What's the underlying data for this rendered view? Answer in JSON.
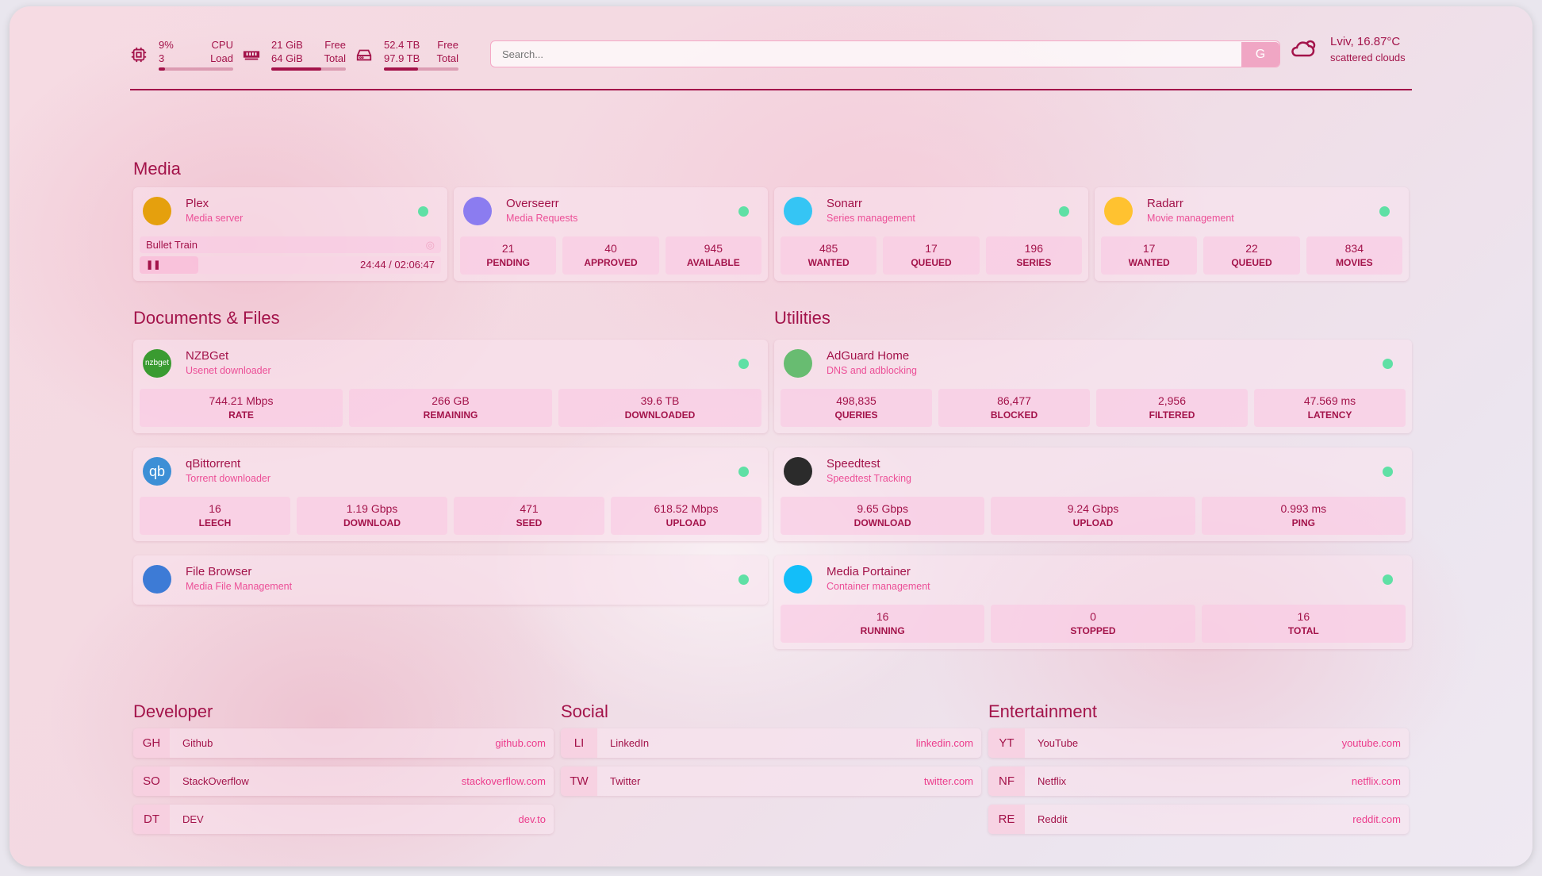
{
  "header": {
    "cpu": {
      "value": "9%",
      "sub": "3",
      "label1": "CPU",
      "label2": "Load",
      "percent": 9,
      "icon": "cpu-icon"
    },
    "memory": {
      "value": "21 GiB",
      "sub": "64 GiB",
      "label1": "Free",
      "label2": "Total",
      "percent": 67,
      "icon": "memory-icon"
    },
    "disk": {
      "value": "52.4 TB",
      "sub": "97.9 TB",
      "label1": "Free",
      "label2": "Total",
      "percent": 46,
      "icon": "disk-icon"
    },
    "search": {
      "placeholder": "Search...",
      "button": "G"
    },
    "weather": {
      "location": "Lviv, 16.87°C",
      "condition": "scattered clouds",
      "icon": "cloud-icon"
    }
  },
  "media": {
    "title": "Media",
    "cards": [
      {
        "name": "Plex",
        "desc": "Media server",
        "color": "#e5a00d",
        "now_playing": "Bullet Train",
        "time": "24:44 / 02:06:47",
        "progress": 19.5
      },
      {
        "name": "Overseerr",
        "desc": "Media Requests",
        "color": "#8b7cf0",
        "stats": [
          {
            "v": "21",
            "l": "PENDING"
          },
          {
            "v": "40",
            "l": "APPROVED"
          },
          {
            "v": "945",
            "l": "AVAILABLE"
          }
        ]
      },
      {
        "name": "Sonarr",
        "desc": "Series management",
        "color": "#35c5f4",
        "stats": [
          {
            "v": "485",
            "l": "WANTED"
          },
          {
            "v": "17",
            "l": "QUEUED"
          },
          {
            "v": "196",
            "l": "SERIES"
          }
        ]
      },
      {
        "name": "Radarr",
        "desc": "Movie management",
        "color": "#ffc230",
        "stats": [
          {
            "v": "17",
            "l": "WANTED"
          },
          {
            "v": "22",
            "l": "QUEUED"
          },
          {
            "v": "834",
            "l": "MOVIES"
          }
        ]
      }
    ]
  },
  "documents": {
    "title": "Documents & Files",
    "cards": [
      {
        "name": "NZBGet",
        "desc": "Usenet downloader",
        "color": "#3a9b31",
        "badge": "nzbget",
        "stats": [
          {
            "v": "744.21 Mbps",
            "l": "RATE"
          },
          {
            "v": "266 GB",
            "l": "REMAINING"
          },
          {
            "v": "39.6 TB",
            "l": "DOWNLOADED"
          }
        ]
      },
      {
        "name": "qBittorrent",
        "desc": "Torrent downloader",
        "color": "#3d8fd6",
        "badge": "qb",
        "stats": [
          {
            "v": "16",
            "l": "LEECH"
          },
          {
            "v": "1.19 Gbps",
            "l": "DOWNLOAD"
          },
          {
            "v": "471",
            "l": "SEED"
          },
          {
            "v": "618.52 Mbps",
            "l": "UPLOAD"
          }
        ]
      },
      {
        "name": "File Browser",
        "desc": "Media File Management",
        "color": "#3d7bd6"
      }
    ]
  },
  "utilities": {
    "title": "Utilities",
    "cards": [
      {
        "name": "AdGuard Home",
        "desc": "DNS and adblocking",
        "color": "#68bc71",
        "stats": [
          {
            "v": "498,835",
            "l": "QUERIES"
          },
          {
            "v": "86,477",
            "l": "BLOCKED"
          },
          {
            "v": "2,956",
            "l": "FILTERED"
          },
          {
            "v": "47.569 ms",
            "l": "LATENCY"
          }
        ]
      },
      {
        "name": "Speedtest",
        "desc": "Speedtest Tracking",
        "color": "#2b2b2b",
        "stats": [
          {
            "v": "9.65 Gbps",
            "l": "DOWNLOAD"
          },
          {
            "v": "9.24 Gbps",
            "l": "UPLOAD"
          },
          {
            "v": "0.993 ms",
            "l": "PING"
          }
        ]
      },
      {
        "name": "Media Portainer",
        "desc": "Container management",
        "color": "#13bef9",
        "stats": [
          {
            "v": "16",
            "l": "RUNNING"
          },
          {
            "v": "0",
            "l": "STOPPED"
          },
          {
            "v": "16",
            "l": "TOTAL"
          }
        ]
      }
    ]
  },
  "bookmarks": [
    {
      "title": "Developer",
      "items": [
        {
          "abbr": "GH",
          "name": "Github",
          "url": "github.com"
        },
        {
          "abbr": "SO",
          "name": "StackOverflow",
          "url": "stackoverflow.com"
        },
        {
          "abbr": "DT",
          "name": "DEV",
          "url": "dev.to"
        }
      ]
    },
    {
      "title": "Social",
      "items": [
        {
          "abbr": "LI",
          "name": "LinkedIn",
          "url": "linkedin.com"
        },
        {
          "abbr": "TW",
          "name": "Twitter",
          "url": "twitter.com"
        }
      ]
    },
    {
      "title": "Entertainment",
      "items": [
        {
          "abbr": "YT",
          "name": "YouTube",
          "url": "youtube.com"
        },
        {
          "abbr": "NF",
          "name": "Netflix",
          "url": "netflix.com"
        },
        {
          "abbr": "RE",
          "name": "Reddit",
          "url": "reddit.com"
        }
      ]
    }
  ],
  "colors": {
    "accent": "#a3134a",
    "subtitle": "#ec4f97",
    "status_ok": "#5fe0a5"
  }
}
